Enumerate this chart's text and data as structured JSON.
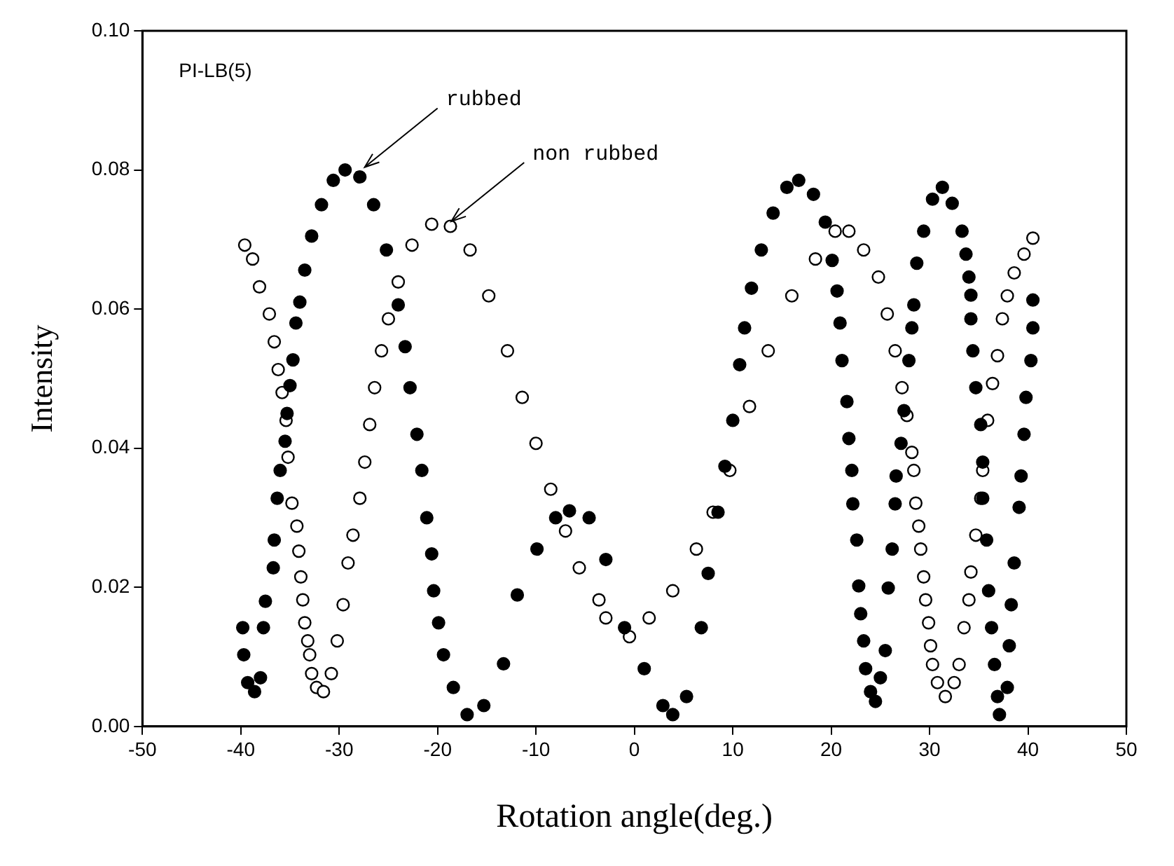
{
  "chart_data": {
    "type": "scatter",
    "xlabel": "Rotation angle(deg.)",
    "ylabel": "Intensity",
    "annotations": [
      "PI-LB(5)"
    ],
    "marker": "circle",
    "grid": false,
    "legend": false,
    "xlim": [
      -50,
      50
    ],
    "xticks": [
      -50,
      -40,
      -30,
      -20,
      -10,
      0,
      10,
      20,
      30,
      40,
      50
    ],
    "ylim": [
      0,
      0.1
    ],
    "yticks": [
      {
        "value": 0,
        "label": "0.00"
      },
      {
        "value": 0.02,
        "label": "0.02"
      },
      {
        "value": 0.04,
        "label": "0.04"
      },
      {
        "value": 0.06,
        "label": "0.06"
      },
      {
        "value": 0.08,
        "label": "0.08"
      },
      {
        "value": 0.1,
        "label": "0.10"
      }
    ],
    "series": [
      {
        "name": "rubbed",
        "color": "#000000",
        "x": [
          -39.8,
          -39.7,
          -39.3,
          -38.6,
          -38.0,
          -37.7,
          -37.5,
          -36.7,
          -36.6,
          -36.3,
          -36.0,
          -35.5,
          -35.3,
          -35.0,
          -34.7,
          -34.4,
          -34.0,
          -33.5,
          -32.8,
          -31.8,
          -30.6,
          -29.4,
          -27.9,
          -26.5,
          -25.2,
          -24.0,
          -23.3,
          -22.8,
          -22.1,
          -21.6,
          -21.1,
          -20.6,
          -20.4,
          -19.9,
          -19.4,
          -18.4,
          -17.0,
          -15.3,
          -13.3,
          -11.9,
          -9.9,
          -8.0,
          -6.6,
          -4.6,
          -2.9,
          -1.0,
          1.0,
          2.9,
          3.9,
          5.3,
          6.8,
          7.5,
          8.5,
          9.2,
          10.0,
          10.7,
          11.2,
          11.9,
          12.9,
          14.1,
          15.5,
          16.7,
          18.2,
          19.4,
          20.1,
          20.6,
          20.9,
          21.1,
          21.6,
          21.8,
          22.1,
          22.2,
          22.6,
          22.8,
          23.0,
          23.3,
          23.5,
          24.0,
          24.5,
          25.0,
          25.5,
          25.8,
          26.2,
          26.5,
          26.6,
          27.1,
          27.4,
          27.9,
          28.2,
          28.4,
          28.7,
          29.4,
          30.3,
          31.3,
          32.3,
          33.3,
          33.7,
          34.0,
          34.2,
          34.2,
          34.4,
          34.7,
          35.2,
          35.4,
          35.4,
          35.8,
          36.0,
          36.3,
          36.6,
          36.9,
          37.1,
          37.9,
          38.1,
          38.3,
          38.6,
          39.1,
          39.3,
          39.6,
          39.8,
          40.3,
          40.5,
          40.5
        ],
        "values": [
          0.0142,
          0.0103,
          0.0063,
          0.005,
          0.007,
          0.0142,
          0.018,
          0.0228,
          0.0268,
          0.0328,
          0.0368,
          0.041,
          0.045,
          0.049,
          0.0527,
          0.058,
          0.061,
          0.0656,
          0.0705,
          0.075,
          0.0785,
          0.08,
          0.079,
          0.075,
          0.0685,
          0.0606,
          0.0546,
          0.0487,
          0.042,
          0.0368,
          0.03,
          0.0248,
          0.0195,
          0.0149,
          0.0103,
          0.0056,
          0.0017,
          0.003,
          0.009,
          0.0189,
          0.0255,
          0.03,
          0.031,
          0.03,
          0.024,
          0.0142,
          0.0083,
          0.003,
          0.0017,
          0.0043,
          0.0142,
          0.022,
          0.0308,
          0.0374,
          0.044,
          0.052,
          0.0573,
          0.063,
          0.0685,
          0.0738,
          0.0775,
          0.0785,
          0.0765,
          0.0725,
          0.067,
          0.0626,
          0.058,
          0.0526,
          0.0467,
          0.0414,
          0.0368,
          0.032,
          0.0268,
          0.0202,
          0.0162,
          0.0123,
          0.0083,
          0.005,
          0.0036,
          0.007,
          0.0109,
          0.0199,
          0.0255,
          0.032,
          0.036,
          0.0407,
          0.0454,
          0.0526,
          0.0573,
          0.0606,
          0.0666,
          0.0712,
          0.0758,
          0.0775,
          0.0752,
          0.0712,
          0.0679,
          0.0646,
          0.062,
          0.0586,
          0.054,
          0.0487,
          0.0434,
          0.038,
          0.0328,
          0.0268,
          0.0195,
          0.0142,
          0.0089,
          0.0043,
          0.0017,
          0.0056,
          0.0116,
          0.0175,
          0.0235,
          0.0315,
          0.036,
          0.042,
          0.0473,
          0.0526,
          0.0573,
          0.0613
        ]
      },
      {
        "name": "non rubbed",
        "color": "#000000",
        "x": [
          -39.6,
          -38.8,
          -38.1,
          -37.1,
          -36.6,
          -36.2,
          -35.8,
          -35.4,
          -35.2,
          -34.8,
          -34.3,
          -34.1,
          -33.9,
          -33.7,
          -33.5,
          -33.2,
          -33.0,
          -32.8,
          -32.3,
          -31.6,
          -30.8,
          -30.2,
          -29.6,
          -29.1,
          -28.6,
          -27.9,
          -27.4,
          -26.9,
          -26.4,
          -25.7,
          -25.0,
          -24.0,
          -22.6,
          -20.6,
          -18.7,
          -16.7,
          -14.8,
          -12.9,
          -11.4,
          -10.0,
          -8.5,
          -7.0,
          -5.6,
          -3.6,
          -2.9,
          -0.5,
          1.5,
          3.9,
          6.3,
          8.0,
          9.7,
          11.7,
          13.6,
          16.0,
          18.4,
          20.4,
          21.8,
          23.3,
          24.8,
          25.7,
          26.5,
          27.2,
          27.7,
          28.2,
          28.4,
          28.6,
          28.9,
          29.1,
          29.4,
          29.6,
          29.9,
          30.1,
          30.3,
          30.8,
          31.6,
          32.5,
          33.0,
          33.5,
          34.0,
          34.2,
          34.7,
          35.2,
          35.4,
          35.9,
          36.4,
          36.9,
          37.4,
          37.9,
          38.6,
          39.6,
          40.5
        ],
        "values": [
          0.0692,
          0.0672,
          0.0632,
          0.0593,
          0.0553,
          0.0513,
          0.048,
          0.044,
          0.0387,
          0.0321,
          0.0288,
          0.0252,
          0.0215,
          0.0182,
          0.0149,
          0.0123,
          0.0103,
          0.0076,
          0.0056,
          0.005,
          0.0076,
          0.0123,
          0.0175,
          0.0235,
          0.0275,
          0.0328,
          0.038,
          0.0434,
          0.0487,
          0.054,
          0.0586,
          0.0639,
          0.0692,
          0.0722,
          0.0719,
          0.0685,
          0.0619,
          0.054,
          0.0473,
          0.0407,
          0.0341,
          0.0281,
          0.0228,
          0.0182,
          0.0156,
          0.0129,
          0.0156,
          0.0195,
          0.0255,
          0.0308,
          0.0368,
          0.046,
          0.054,
          0.0619,
          0.0672,
          0.0712,
          0.0712,
          0.0685,
          0.0646,
          0.0593,
          0.054,
          0.0487,
          0.0447,
          0.0394,
          0.0368,
          0.0321,
          0.0288,
          0.0255,
          0.0215,
          0.0182,
          0.0149,
          0.0116,
          0.0089,
          0.0063,
          0.0043,
          0.0063,
          0.0089,
          0.0142,
          0.0182,
          0.0222,
          0.0275,
          0.0328,
          0.0368,
          0.044,
          0.0493,
          0.0533,
          0.0586,
          0.0619,
          0.0652,
          0.0679,
          0.0702
        ]
      }
    ]
  }
}
